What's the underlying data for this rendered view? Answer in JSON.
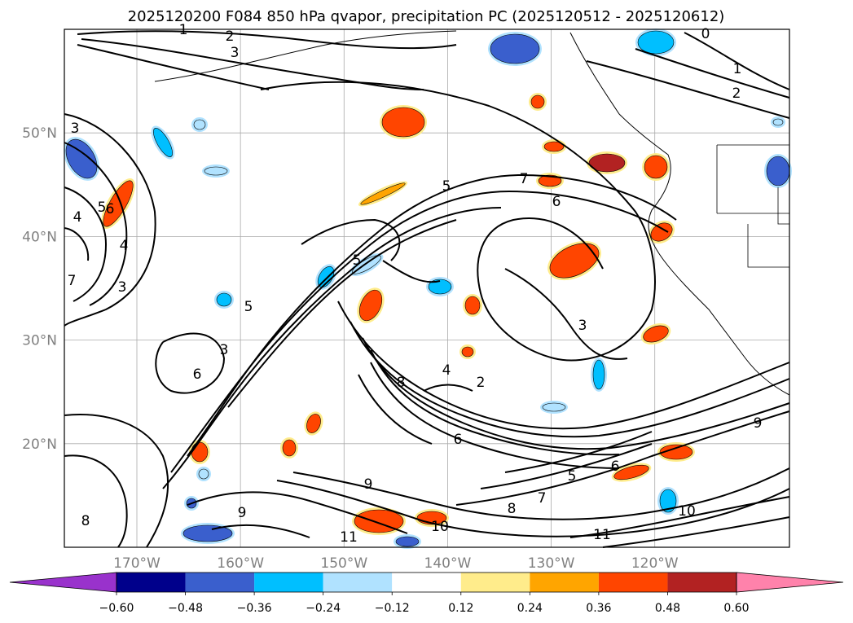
{
  "chart_data": {
    "type": "heatmap",
    "title": "2025120200 F084 850 hPa qvapor, precipitation PC (2025120512 - 2025120612)",
    "map": {
      "x_ticks": [
        "170°W",
        "160°W",
        "150°W",
        "140°W",
        "130°W",
        "120°W"
      ],
      "y_ticks": [
        "20°N",
        "30°N",
        "40°N",
        "50°N"
      ],
      "lon_range": [
        -177,
        -107
      ],
      "lat_range": [
        10,
        60
      ],
      "grid": true
    },
    "colorbar": {
      "tick_labels": [
        "−0.60",
        "−0.48",
        "−0.36",
        "−0.24",
        "−0.12",
        "0.12",
        "0.24",
        "0.36",
        "0.48",
        "0.60"
      ],
      "colors": [
        "#9932cc",
        "#00008b",
        "#3a5fcd",
        "#00bfff",
        "#b0e2ff",
        "#ffffff",
        "#ffec8b",
        "#ffa500",
        "#ff4500",
        "#b22222",
        "#ff82ab"
      ],
      "extend": "both"
    },
    "contour_labels": [
      "1",
      "2",
      "3",
      "0",
      "1",
      "2",
      "3",
      "4",
      "5",
      "6",
      "7",
      "3",
      "4",
      "5",
      "6",
      "3",
      "5",
      "5",
      "7",
      "2",
      "3",
      "4",
      "6",
      "8",
      "9",
      "10",
      "11",
      "5",
      "6",
      "7",
      "8",
      "9",
      "10",
      "11",
      "6",
      "8",
      "9"
    ],
    "contour_levels_g_per_kg": [
      0,
      1,
      2,
      3,
      4,
      5,
      6,
      7,
      8,
      9,
      10,
      11
    ]
  }
}
